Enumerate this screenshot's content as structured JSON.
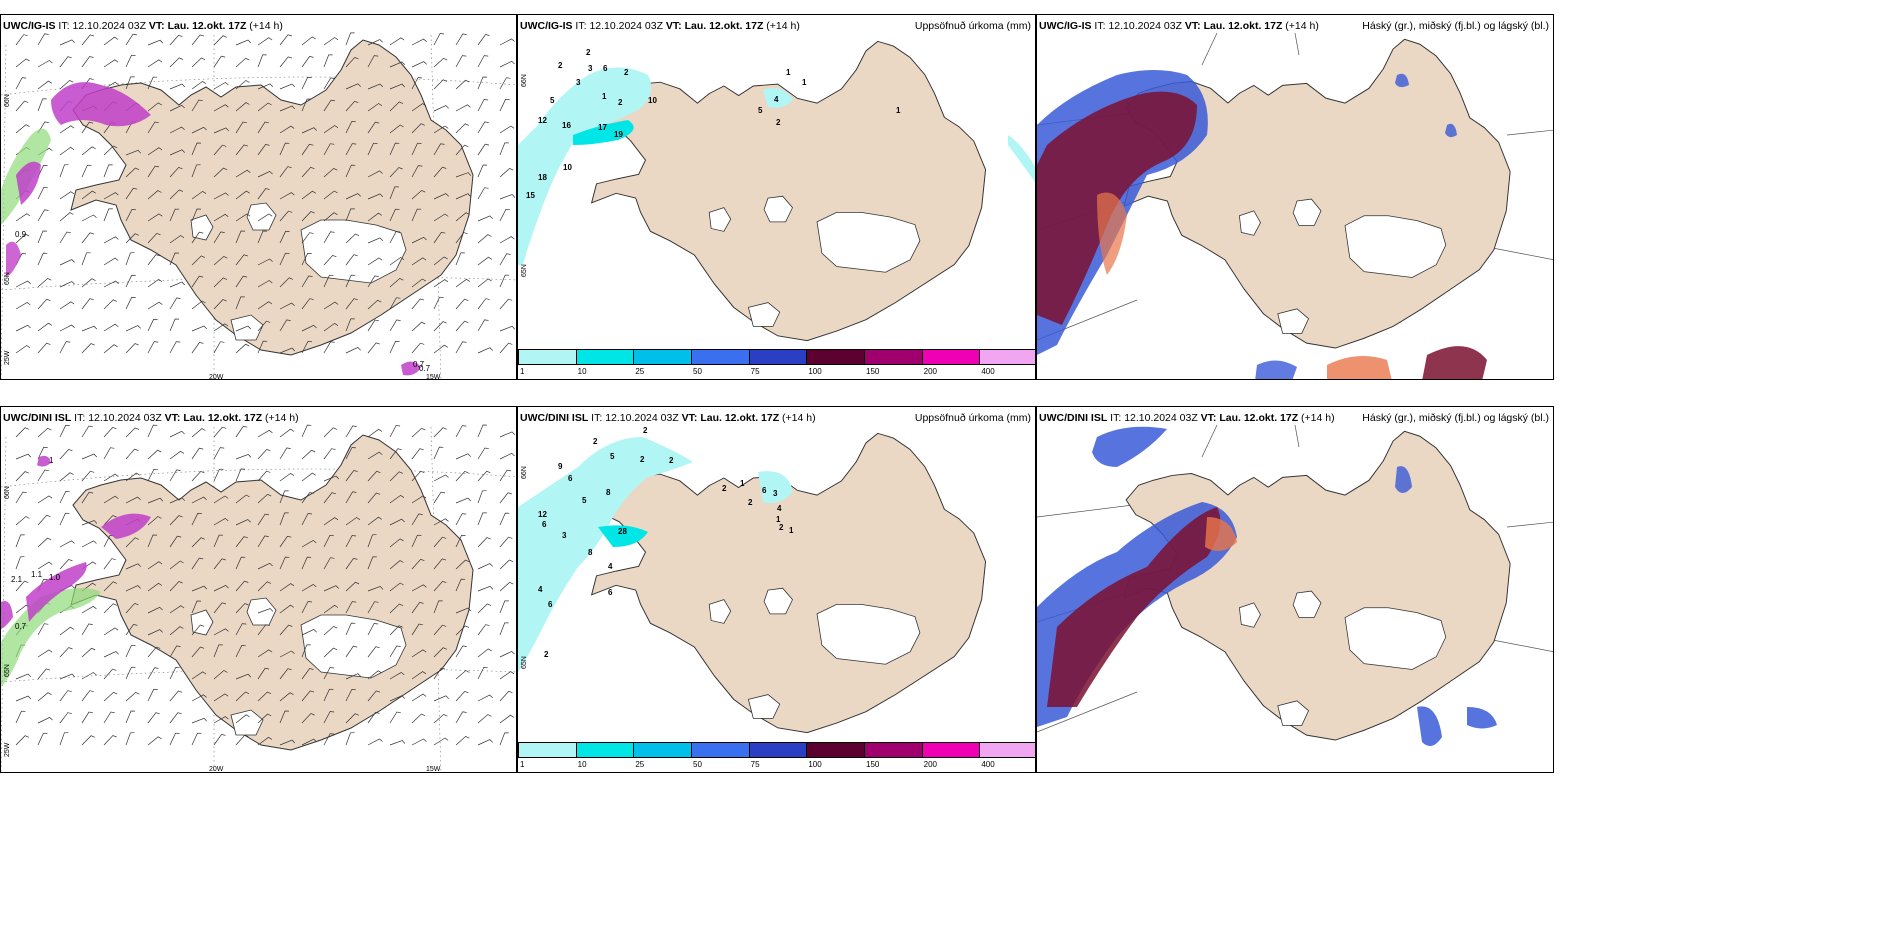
{
  "panels": {
    "p1": {
      "model": "UWC/IG-IS",
      "it_label": "IT:",
      "it": "12.10.2024 03Z",
      "vt_label": "VT:",
      "vt": "Lau. 12.okt. 17Z",
      "lead": "(+14 h)",
      "title": ""
    },
    "p2": {
      "model": "UWC/IG-IS",
      "it_label": "IT:",
      "it": "12.10.2024 03Z",
      "vt_label": "VT:",
      "vt": "Lau. 12.okt. 17Z",
      "lead": "(+14 h)",
      "title": "Uppsöfnuð úrkoma (mm)"
    },
    "p3": {
      "model": "UWC/IG-IS",
      "it_label": "IT:",
      "it": "12.10.2024 03Z",
      "vt_label": "VT:",
      "vt": "Lau. 12.okt. 17Z",
      "lead": "(+14 h)",
      "title": "Háský (gr.), miðský (fj.bl.) og lágský (bl.)"
    },
    "p4": {
      "model": "UWC/DINI ISL",
      "it_label": "IT:",
      "it": "12.10.2024 03Z",
      "vt_label": "VT:",
      "vt": "Lau. 12.okt. 17Z",
      "lead": "(+14 h)",
      "title": ""
    },
    "p5": {
      "model": "UWC/DINI ISL",
      "it_label": "IT:",
      "it": "12.10.2024 03Z",
      "vt_label": "VT:",
      "vt": "Lau. 12.okt. 17Z",
      "lead": "(+14 h)",
      "title": "Uppsöfnuð úrkoma (mm)"
    },
    "p6": {
      "model": "UWC/DINI ISL",
      "it_label": "IT:",
      "it": "12.10.2024 03Z",
      "vt_label": "VT:",
      "vt": "Lau. 12.okt. 17Z",
      "lead": "(+14 h)",
      "title": "Háský (gr.), miðský (fj.bl.) og lágský (bl.)"
    }
  },
  "grid_labels": {
    "lat66": "66N",
    "lat65": "65N",
    "lon25": "25W",
    "lon20": "20W",
    "lon15": "15W"
  },
  "colorbar": {
    "ticks": [
      "1",
      "10",
      "25",
      "50",
      "75",
      "100",
      "150",
      "200",
      "400"
    ],
    "colors": [
      "#b2f5f5",
      "#00e6e6",
      "#00bfe8",
      "#3a6ff0",
      "#2b3fc4",
      "#5c0030",
      "#a0006e",
      "#f000b4",
      "#f0a6f0"
    ]
  },
  "precip_ig": [
    {
      "v": "2"
    },
    {
      "v": "2"
    },
    {
      "v": "3"
    },
    {
      "v": "6"
    },
    {
      "v": "2"
    },
    {
      "v": "3"
    },
    {
      "v": "1"
    },
    {
      "v": "2"
    },
    {
      "v": "10"
    },
    {
      "v": "5"
    },
    {
      "v": "12"
    },
    {
      "v": "16"
    },
    {
      "v": "17"
    },
    {
      "v": "19"
    },
    {
      "v": "10"
    },
    {
      "v": "18"
    },
    {
      "v": "15"
    },
    {
      "v": "4"
    },
    {
      "v": "5"
    },
    {
      "v": "2"
    },
    {
      "v": "1"
    },
    {
      "v": "1"
    },
    {
      "v": "1"
    }
  ],
  "precip_dini": [
    {
      "v": "2"
    },
    {
      "v": "2"
    },
    {
      "v": "5"
    },
    {
      "v": "2"
    },
    {
      "v": "9"
    },
    {
      "v": "6"
    },
    {
      "v": "8"
    },
    {
      "v": "5"
    },
    {
      "v": "12"
    },
    {
      "v": "6"
    },
    {
      "v": "3"
    },
    {
      "v": "28"
    },
    {
      "v": "8"
    },
    {
      "v": "4"
    },
    {
      "v": "6"
    },
    {
      "v": "4"
    },
    {
      "v": "6"
    },
    {
      "v": "2"
    },
    {
      "v": "2"
    },
    {
      "v": "1"
    },
    {
      "v": "6"
    },
    {
      "v": "3"
    },
    {
      "v": "1"
    },
    {
      "v": "2"
    },
    {
      "v": "4"
    },
    {
      "v": "1"
    },
    {
      "v": "2"
    },
    {
      "v": "2"
    }
  ],
  "wind_values_ig": [
    "0.9",
    "0.7",
    "0.7"
  ],
  "wind_values_dini": [
    "1",
    "1.0",
    "0.7",
    "1.1",
    "2.1"
  ],
  "colors": {
    "land": "#ead7c4",
    "ice": "#ffffff",
    "coast": "#333333"
  }
}
